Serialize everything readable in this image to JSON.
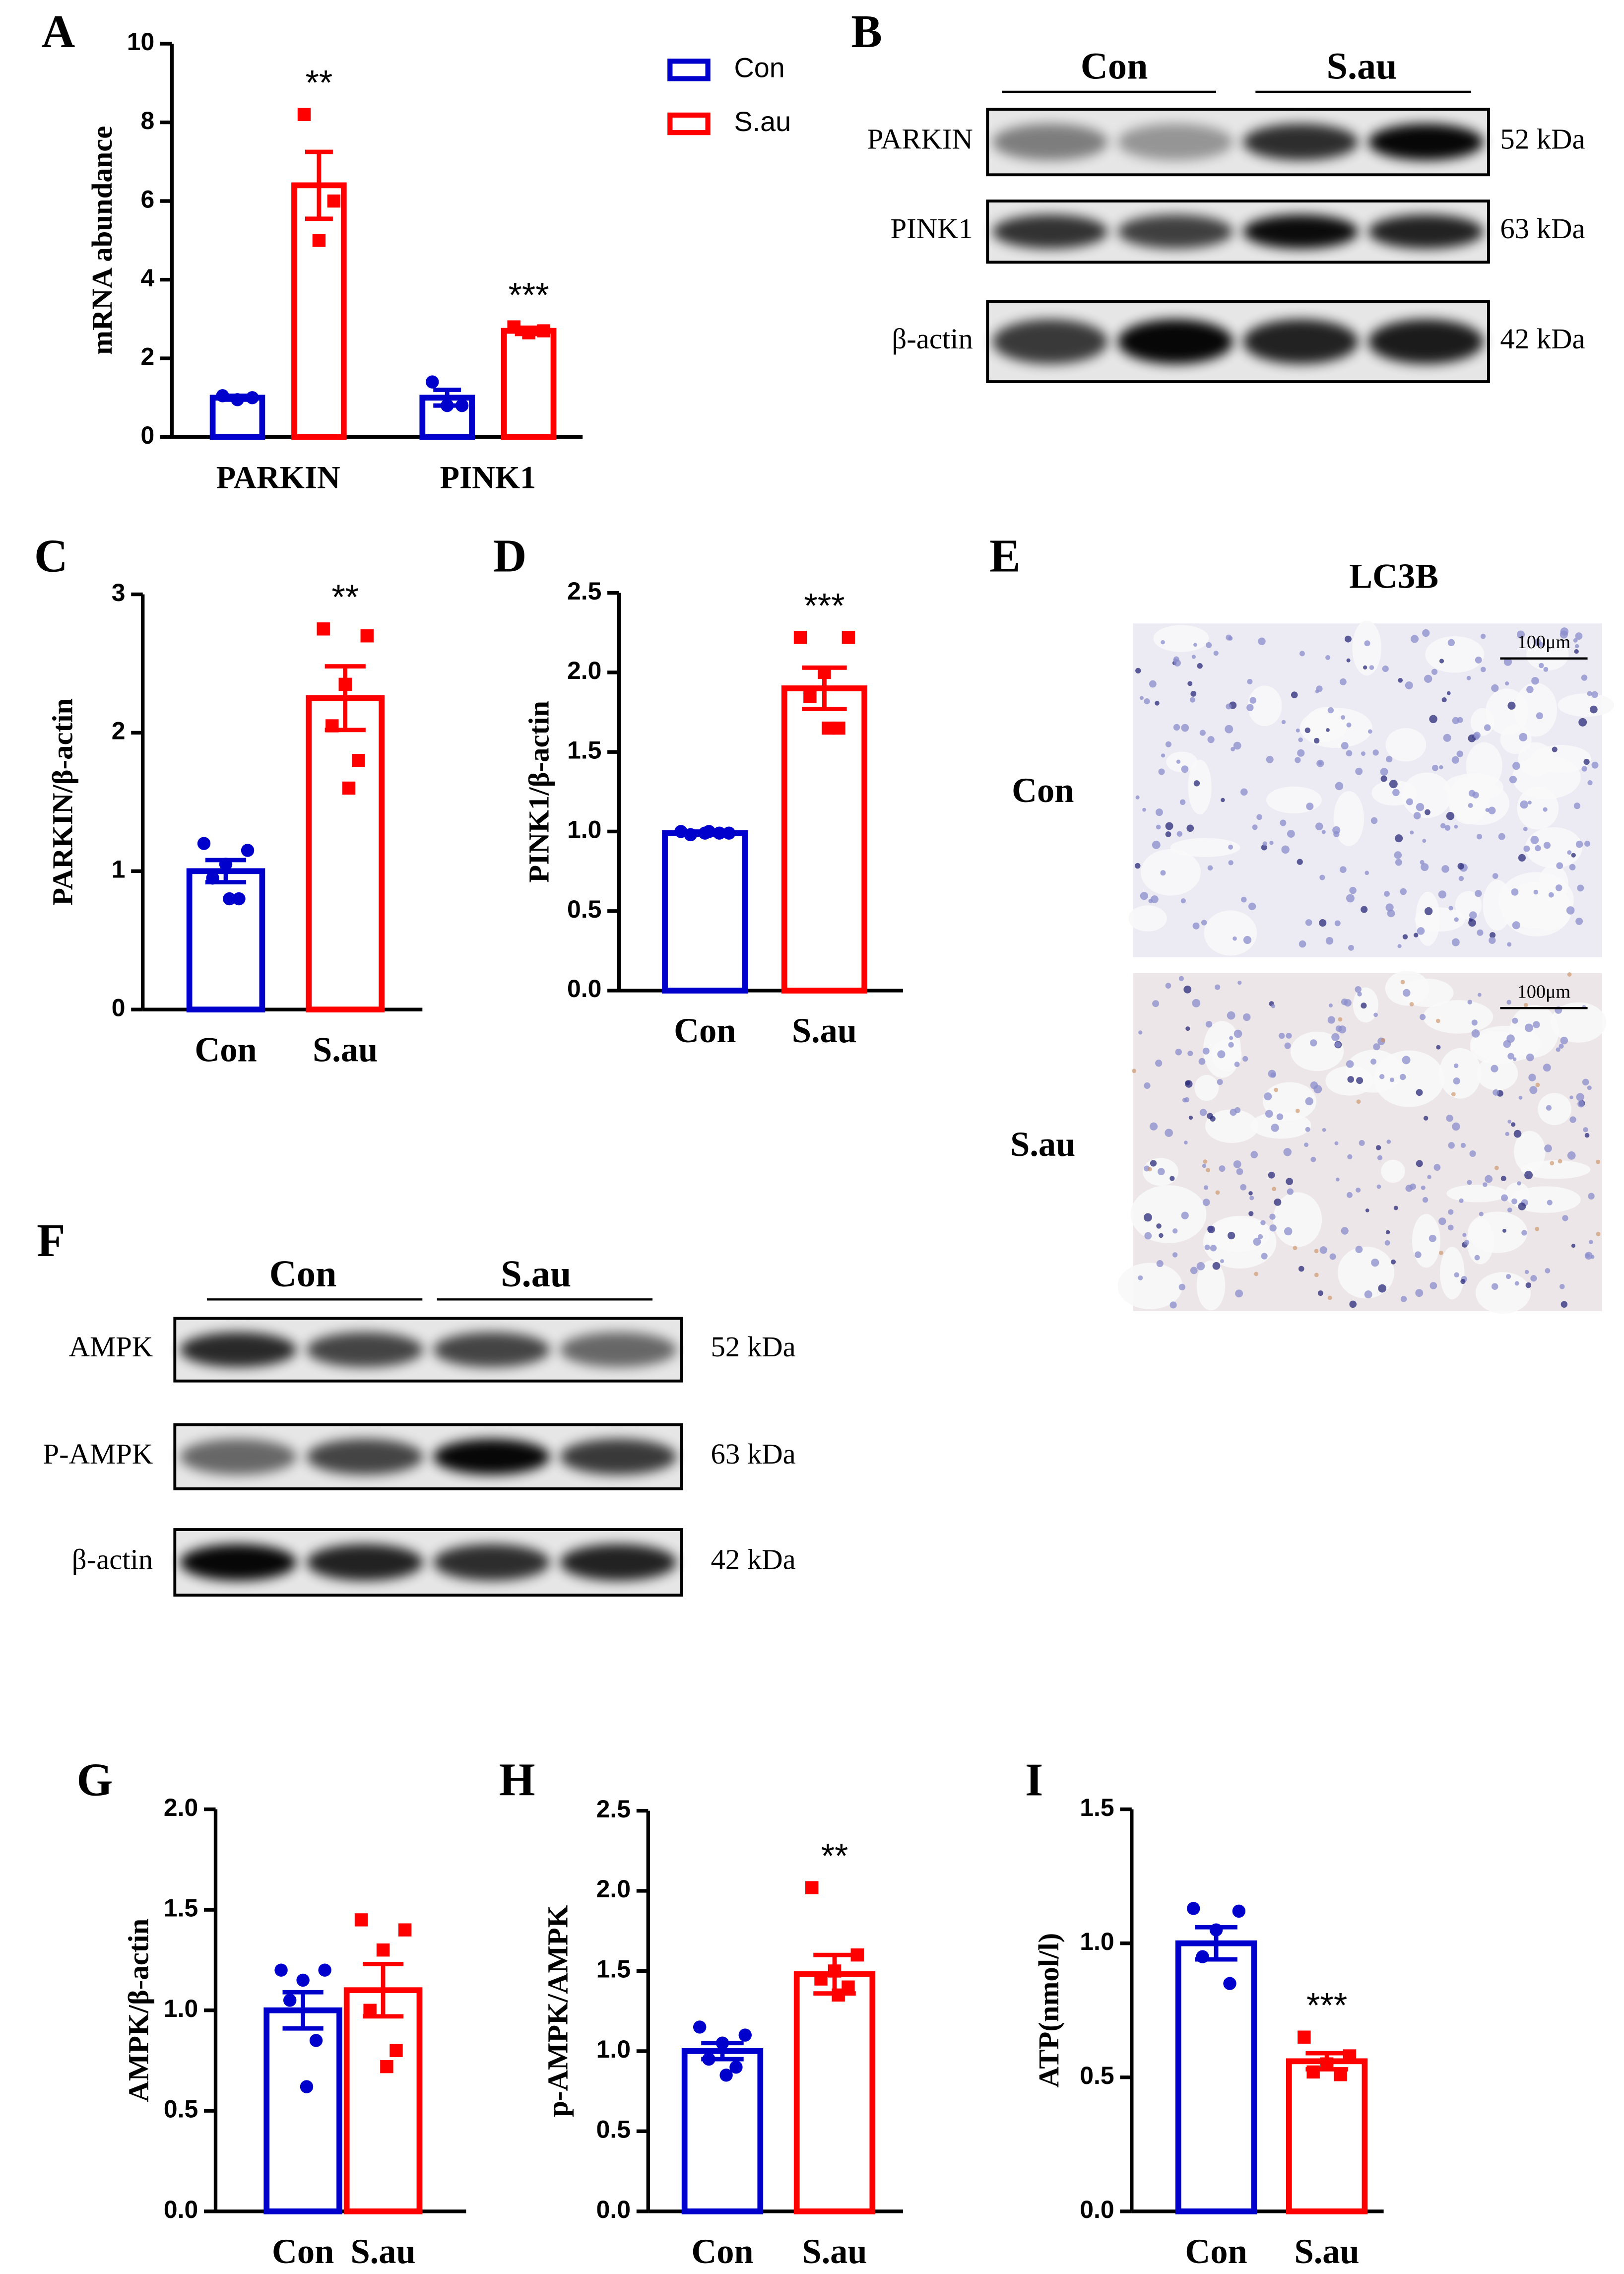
{
  "chart_data": [
    {
      "type": "bar",
      "panel": "A",
      "y_label": "mRNA abundance",
      "categories": [
        "PARKIN",
        "PINK1"
      ],
      "series": [
        {
          "name": "Con",
          "color": "#0000cd",
          "values": [
            1.0,
            1.0
          ],
          "errors": [
            0.05,
            0.2
          ],
          "points": [
            [
              1.05,
              1.0,
              0.95
            ],
            [
              1.4,
              0.8,
              0.8
            ]
          ]
        },
        {
          "name": "S.au",
          "color": "#ff0000",
          "values": [
            6.4,
            2.7
          ],
          "errors": [
            0.85,
            0.08
          ],
          "points": [
            [
              8.2,
              6.0,
              5.0
            ],
            [
              2.8,
              2.7,
              2.65
            ]
          ]
        }
      ],
      "annotations": [
        {
          "text": "**",
          "category": 0,
          "series": 1
        },
        {
          "text": "***",
          "category": 1,
          "series": 1
        }
      ],
      "ylim": [
        0,
        10
      ],
      "yticks": [
        0,
        2,
        4,
        6,
        8,
        10
      ],
      "legend": "top-right"
    },
    {
      "type": "bar",
      "panel": "C",
      "y_label": "PARKIN/β-actin",
      "categories": [
        "Con",
        "S.au"
      ],
      "colors": [
        "#0000cd",
        "#ff0000"
      ],
      "values": [
        1.0,
        2.25
      ],
      "errors": [
        0.08,
        0.23
      ],
      "points": [
        [
          1.2,
          1.15,
          1.05,
          0.95,
          0.8,
          0.8
        ],
        [
          2.75,
          2.7,
          2.35,
          2.05,
          1.8,
          1.6
        ]
      ],
      "annotations": [
        {
          "text": "**",
          "category": 1
        }
      ],
      "ylim": [
        0,
        3
      ],
      "yticks": [
        0,
        1,
        2,
        3
      ]
    },
    {
      "type": "bar",
      "panel": "D",
      "y_label": "PINK1/β-actin",
      "categories": [
        "Con",
        "S.au"
      ],
      "colors": [
        "#0000cd",
        "#ff0000"
      ],
      "values": [
        0.99,
        1.9
      ],
      "errors": [
        0.01,
        0.13
      ],
      "points": [
        [
          1.0,
          0.99,
          0.99,
          0.98,
          0.99,
          1.0
        ],
        [
          2.22,
          2.22,
          2.0,
          1.85,
          1.65,
          1.65
        ]
      ],
      "annotations": [
        {
          "text": "***",
          "category": 1
        }
      ],
      "ylim": [
        0,
        2.5
      ],
      "yticks": [
        {
          "value": 0,
          "label": "0.0"
        },
        0.5,
        {
          "value": 1,
          "label": "1.0"
        },
        1.5,
        {
          "value": 2,
          "label": "2.0"
        },
        2.5
      ]
    },
    {
      "type": "bar",
      "panel": "G",
      "y_label": "AMPK/β-actin",
      "categories": [
        "Con",
        "S.au"
      ],
      "colors": [
        "#0000cd",
        "#ff0000"
      ],
      "values": [
        1.0,
        1.1
      ],
      "errors": [
        0.09,
        0.13
      ],
      "points": [
        [
          1.2,
          1.2,
          1.15,
          1.05,
          0.85,
          0.62
        ],
        [
          1.45,
          1.4,
          1.3,
          1.0,
          0.8,
          0.72
        ]
      ],
      "ylim": [
        0,
        2
      ],
      "yticks": [
        {
          "value": 0,
          "label": "0.0"
        },
        0.5,
        {
          "value": 1,
          "label": "1.0"
        },
        1.5,
        {
          "value": 2,
          "label": "2.0"
        }
      ]
    },
    {
      "type": "bar",
      "panel": "H",
      "y_label": "p-AMPK/AMPK",
      "categories": [
        "Con",
        "S.au"
      ],
      "colors": [
        "#0000cd",
        "#ff0000"
      ],
      "values": [
        1.0,
        1.48
      ],
      "errors": [
        0.05,
        0.12
      ],
      "points": [
        [
          1.15,
          1.1,
          1.05,
          0.95,
          0.9,
          0.85
        ],
        [
          2.02,
          1.6,
          1.5,
          1.45,
          1.4,
          1.35
        ]
      ],
      "annotations": [
        {
          "text": "**",
          "category": 1
        }
      ],
      "ylim": [
        0,
        2.5
      ],
      "yticks": [
        {
          "value": 0,
          "label": "0.0"
        },
        0.5,
        {
          "value": 1,
          "label": "1.0"
        },
        1.5,
        {
          "value": 2,
          "label": "2.0"
        },
        2.5
      ]
    },
    {
      "type": "bar",
      "panel": "I",
      "y_label": "ATP(nmol/l)",
      "categories": [
        "Con",
        "S.au"
      ],
      "colors": [
        "#0000cd",
        "#ff0000"
      ],
      "values": [
        1.0,
        0.56
      ],
      "errors": [
        0.06,
        0.03
      ],
      "points": [
        [
          1.13,
          1.12,
          1.05,
          0.95,
          0.85
        ],
        [
          0.65,
          0.58,
          0.55,
          0.52,
          0.51
        ]
      ],
      "annotations": [
        {
          "text": "***",
          "category": 1
        }
      ],
      "ylim": [
        0,
        1.5
      ],
      "yticks": [
        {
          "value": 0,
          "label": "0.0"
        },
        0.5,
        {
          "value": 1,
          "label": "1.0"
        },
        1.5
      ]
    }
  ],
  "blots": [
    {
      "panel": "B",
      "groups": [
        "Con",
        "S.au"
      ],
      "rows": [
        {
          "protein": "PARKIN",
          "size": "52 kDa"
        },
        {
          "protein": "PINK1",
          "size": "63 kDa"
        },
        {
          "protein": "β-actin",
          "size": "42 kDa"
        }
      ]
    },
    {
      "panel": "F",
      "groups": [
        "Con",
        "S.au"
      ],
      "rows": [
        {
          "protein": "AMPK",
          "size": "52 kDa"
        },
        {
          "protein": "P-AMPK",
          "size": "63 kDa"
        },
        {
          "protein": "β-actin",
          "size": "42 kDa"
        }
      ]
    }
  ],
  "histology": {
    "panel": "E",
    "title": "LC3B",
    "rows": [
      "Con",
      "S.au"
    ],
    "scale_bar": "100μm"
  }
}
